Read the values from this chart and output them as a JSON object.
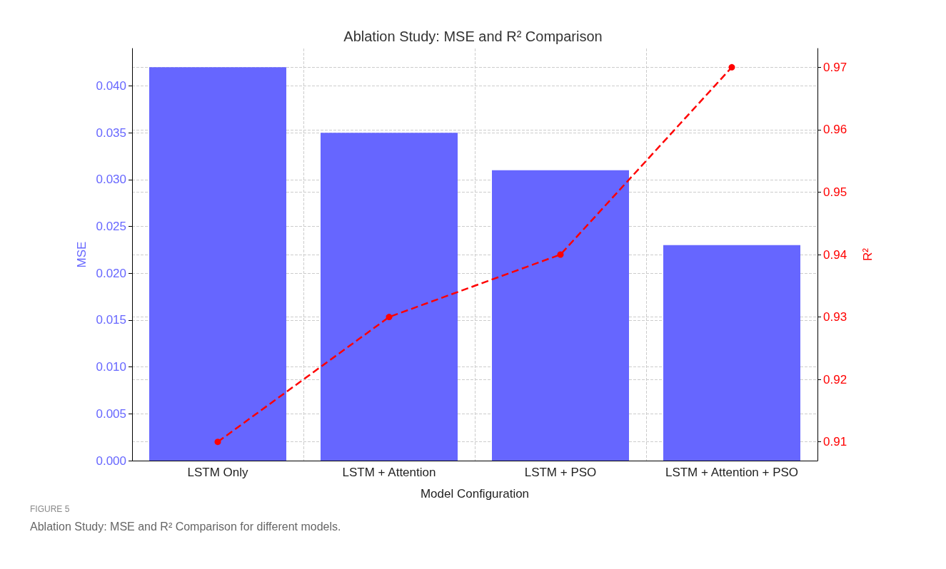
{
  "chart_data": {
    "type": "bar",
    "title": "Ablation Study: MSE and R² Comparison",
    "xlabel": "Model Configuration",
    "ylabel": "MSE",
    "y2label": "R²",
    "categories": [
      "LSTM Only",
      "LSTM + Attention",
      "LSTM + PSO",
      "LSTM + Attention + PSO"
    ],
    "series": [
      {
        "name": null,
        "color": "#6666ff",
        "values": [
          0.042,
          0.035,
          0.031,
          0.023
        ]
      },
      {
        "name": null,
        "type": "line",
        "axis": "y2",
        "color": "#ff0000",
        "values": [
          0.91,
          0.93,
          0.94,
          0.97
        ],
        "marker": "circle",
        "line_style": "dashed"
      }
    ],
    "ylim": [
      0,
      0.044
    ],
    "yticks": [
      {
        "value": 0,
        "label": "0.000"
      },
      {
        "value": 0.005,
        "label": "0.005"
      },
      {
        "value": 0.01,
        "label": "0.010"
      },
      {
        "value": 0.015,
        "label": "0.015"
      },
      {
        "value": 0.02,
        "label": "0.020"
      },
      {
        "value": 0.025,
        "label": "0.025"
      },
      {
        "value": 0.03,
        "label": "0.030"
      },
      {
        "value": 0.035,
        "label": "0.035"
      },
      {
        "value": 0.04,
        "label": "0.040"
      }
    ],
    "y2lim": [
      0.907,
      0.973
    ],
    "y2ticks": [
      0.91,
      0.92,
      0.93,
      0.94,
      0.95,
      0.96,
      0.97
    ],
    "grid": true,
    "annotations": [
      "FIGURE 5",
      "Ablation Study: MSE and R² Comparison for different models."
    ]
  }
}
